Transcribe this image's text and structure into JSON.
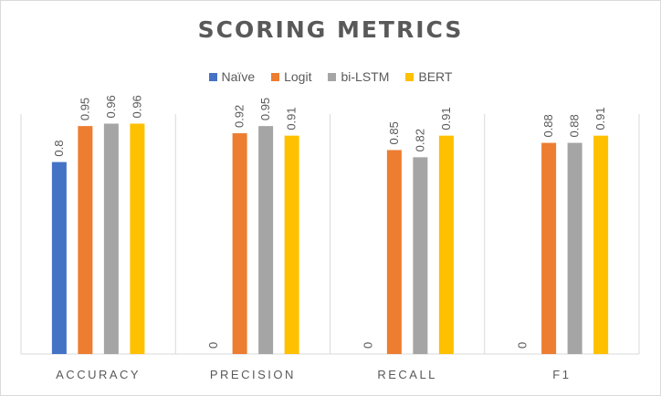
{
  "chart_data": {
    "type": "bar",
    "title": "SCORING METRICS",
    "categories": [
      "ACCURACY",
      "PRECISION",
      "RECALL",
      "F1"
    ],
    "series": [
      {
        "name": "Naïve",
        "color": "#4472c4",
        "values": [
          0.8,
          0,
          0,
          0
        ]
      },
      {
        "name": "Logit",
        "color": "#ed7d31",
        "values": [
          0.95,
          0.92,
          0.85,
          0.88
        ]
      },
      {
        "name": "bi-LSTM",
        "color": "#a5a5a5",
        "values": [
          0.96,
          0.95,
          0.82,
          0.88
        ]
      },
      {
        "name": "BERT",
        "color": "#ffc000",
        "values": [
          0.96,
          0.91,
          0.91,
          0.91
        ]
      }
    ],
    "ylim": [
      0,
      1.0
    ],
    "grid": false,
    "legend_position": "top",
    "data_labels": true
  }
}
